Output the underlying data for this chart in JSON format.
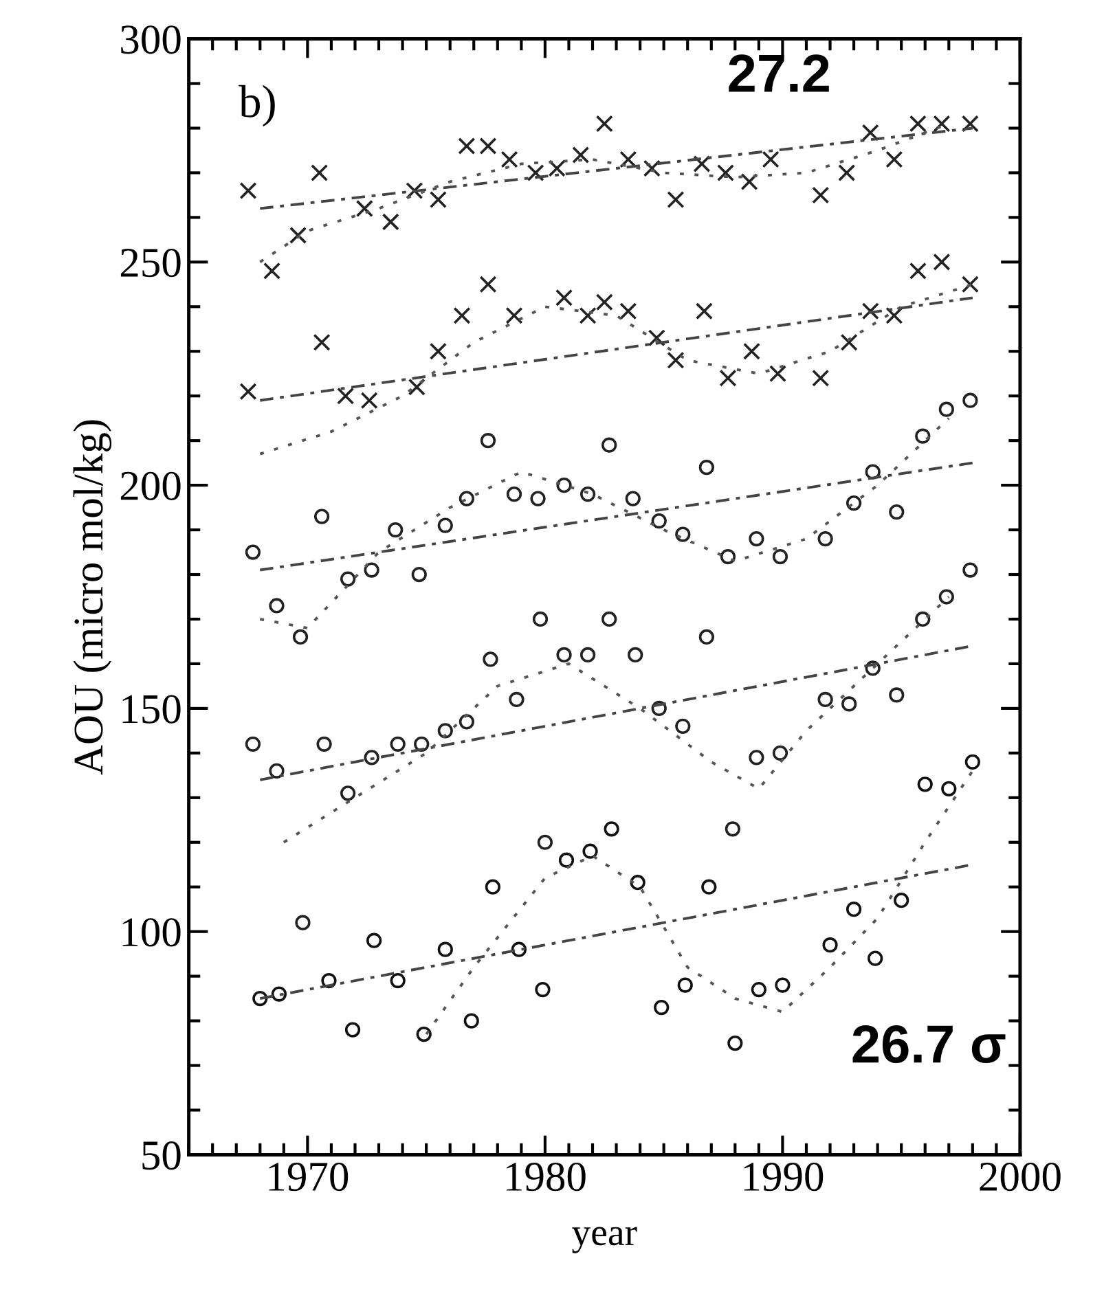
{
  "chart_data": {
    "type": "scatter",
    "xlabel": "year",
    "ylabel": "AOU (micro mol/kg)",
    "xlim": [
      1965,
      2000
    ],
    "xticks": [
      1970,
      1980,
      1990,
      2000
    ],
    "ylim": [
      50,
      300
    ],
    "yticks": [
      50,
      100,
      150,
      200,
      250,
      300
    ],
    "grid": false,
    "legend": false,
    "annotations": [
      "b)",
      "27.2",
      "26.7 σ"
    ],
    "series": [
      {
        "marker": "cross",
        "color": "#222222",
        "x": [
          1967.5,
          1968.5,
          1969.6,
          1970.5,
          1972.4,
          1973.5,
          1974.5,
          1975.5,
          1976.7,
          1977.6,
          1978.5,
          1979.6,
          1980.5,
          1981.5,
          1982.5,
          1983.5,
          1984.5,
          1985.5,
          1986.6,
          1987.6,
          1988.6,
          1989.5,
          1991.6,
          1992.7,
          1993.7,
          1994.7,
          1995.7,
          1996.7,
          1997.9
        ],
        "values": [
          266,
          248,
          256,
          270,
          262,
          259,
          266,
          264,
          276,
          276,
          273,
          270,
          271,
          274,
          281,
          273,
          271,
          264,
          272,
          270,
          268,
          273,
          265,
          270,
          279,
          273,
          281,
          281,
          281
        ]
      },
      {
        "marker": "cross",
        "color": "#222222",
        "x": [
          1967.5,
          1970.6,
          1971.6,
          1972.6,
          1974.6,
          1975.5,
          1976.5,
          1977.6,
          1978.7,
          1980.8,
          1981.8,
          1982.5,
          1983.5,
          1984.7,
          1985.5,
          1986.7,
          1987.7,
          1988.7,
          1989.8,
          1991.6,
          1992.8,
          1993.7,
          1994.7,
          1995.7,
          1996.7,
          1997.9
        ],
        "values": [
          221,
          232,
          220,
          219,
          222,
          230,
          238,
          245,
          238,
          242,
          238,
          241,
          239,
          233,
          228,
          239,
          224,
          230,
          225,
          224,
          232,
          239,
          238,
          248,
          250,
          245
        ]
      },
      {
        "marker": "circle",
        "color": "#222222",
        "x": [
          1967.7,
          1968.7,
          1969.7,
          1970.6,
          1971.7,
          1972.7,
          1973.7,
          1974.7,
          1975.8,
          1976.7,
          1977.6,
          1978.7,
          1979.7,
          1980.8,
          1981.8,
          1982.7,
          1983.7,
          1984.8,
          1985.8,
          1986.8,
          1987.7,
          1988.9,
          1989.9,
          1991.8,
          1993.0,
          1993.8,
          1994.8,
          1995.9,
          1996.9,
          1997.9
        ],
        "values": [
          185,
          173,
          166,
          193,
          179,
          181,
          190,
          180,
          191,
          197,
          210,
          198,
          197,
          200,
          198,
          209,
          197,
          192,
          189,
          204,
          184,
          188,
          184,
          188,
          196,
          203,
          194,
          211,
          217,
          219
        ]
      },
      {
        "marker": "circle",
        "color": "#222222",
        "x": [
          1967.7,
          1968.7,
          1969.8,
          1970.7,
          1971.7,
          1972.7,
          1973.8,
          1974.8,
          1975.8,
          1976.7,
          1977.7,
          1978.8,
          1979.8,
          1980.0,
          1980.8,
          1981.8,
          1982.7,
          1983.8,
          1984.8,
          1985.8,
          1986.8,
          1987.9,
          1988.9,
          1989.9,
          1991.8,
          1992.8,
          1993.8,
          1994.8,
          1995.9,
          1996.9,
          1997.9
        ],
        "values": [
          142,
          136,
          102,
          142,
          131,
          139,
          142,
          142,
          145,
          147,
          161,
          152,
          170,
          120,
          162,
          162,
          170,
          162,
          150,
          146,
          166,
          123,
          139,
          140,
          152,
          151,
          159,
          153,
          170,
          175,
          181
        ]
      },
      {
        "marker": "circle",
        "color": "#111111",
        "x": [
          1968.0,
          1968.8,
          1970.9,
          1971.9,
          1972.8,
          1973.8,
          1974.9,
          1975.8,
          1976.9,
          1977.8,
          1978.9,
          1979.9,
          1980.9,
          1981.9,
          1982.8,
          1983.9,
          1984.9,
          1985.9,
          1986.9,
          1988.0,
          1989.0,
          1990.0,
          1992.0,
          1993.0,
          1993.9,
          1995.0,
          1996.0,
          1997.0,
          1998.0
        ],
        "values": [
          85,
          86,
          89,
          78,
          98,
          89,
          77,
          96,
          80,
          110,
          96,
          87,
          116,
          118,
          123,
          111,
          83,
          88,
          110,
          75,
          87,
          88,
          97,
          105,
          94,
          107,
          133,
          132,
          138
        ]
      },
      {
        "type": "line",
        "line_style": "dashed",
        "color": "#444444",
        "x": [
          1968,
          1998
        ],
        "values": [
          262,
          280
        ]
      },
      {
        "type": "line",
        "line_style": "dashed",
        "color": "#444444",
        "x": [
          1968,
          1998
        ],
        "values": [
          219,
          242
        ]
      },
      {
        "type": "line",
        "line_style": "dashed",
        "color": "#444444",
        "x": [
          1968,
          1998
        ],
        "values": [
          181,
          205
        ]
      },
      {
        "type": "line",
        "line_style": "dashed",
        "color": "#444444",
        "x": [
          1968,
          1998
        ],
        "values": [
          134,
          164
        ]
      },
      {
        "type": "line",
        "line_style": "dashed",
        "color": "#444444",
        "x": [
          1968,
          1998
        ],
        "values": [
          85,
          115
        ]
      },
      {
        "type": "line",
        "line_style": "dotted",
        "color": "#555555",
        "x": [
          1968,
          1970,
          1973,
          1976,
          1979,
          1982,
          1985,
          1988,
          1991,
          1994,
          1997
        ],
        "values": [
          250,
          257,
          262,
          268,
          272,
          273,
          270,
          269,
          270,
          275,
          281
        ]
      },
      {
        "type": "line",
        "line_style": "dotted",
        "color": "#555555",
        "x": [
          1968,
          1971,
          1974,
          1977,
          1980,
          1983,
          1986,
          1989,
          1992,
          1995,
          1998
        ],
        "values": [
          207,
          212,
          220,
          232,
          240,
          238,
          228,
          225,
          230,
          240,
          245
        ]
      },
      {
        "type": "line",
        "line_style": "dotted",
        "color": "#555555",
        "x": [
          1968,
          1970,
          1973,
          1976,
          1979,
          1982,
          1985,
          1988,
          1991,
          1994,
          1997
        ],
        "values": [
          170,
          168,
          185,
          195,
          203,
          198,
          190,
          183,
          188,
          200,
          215
        ]
      },
      {
        "type": "line",
        "line_style": "dotted",
        "color": "#555555",
        "x": [
          1969,
          1972,
          1975,
          1978,
          1981,
          1984,
          1987,
          1989,
          1991,
          1994,
          1997
        ],
        "values": [
          120,
          130,
          140,
          155,
          160,
          150,
          138,
          132,
          145,
          160,
          175
        ]
      },
      {
        "type": "line",
        "line_style": "dotted",
        "color": "#555555",
        "x": [
          1975,
          1977,
          1980,
          1982,
          1984,
          1986,
          1988,
          1990,
          1992,
          1994,
          1996,
          1998
        ],
        "values": [
          77,
          92,
          112,
          117,
          110,
          92,
          85,
          82,
          92,
          103,
          120,
          136
        ]
      }
    ]
  }
}
